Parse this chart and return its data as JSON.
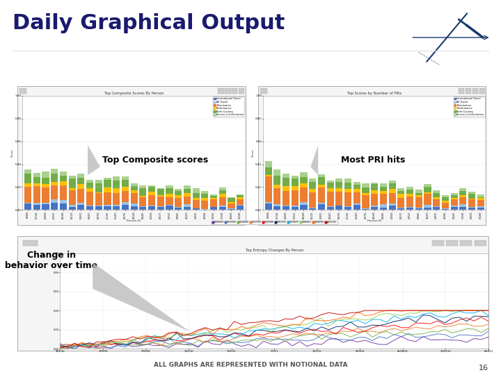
{
  "title": "Daily Graphical Output",
  "title_fontsize": 22,
  "title_color": "#1a1a6e",
  "title_fontweight": "bold",
  "bg_color": "#ffffff",
  "slide_number": "16",
  "bottom_text": "ALL GRAPHS ARE REPRESENTED WITH NOTIONAL DATA",
  "label_top_composite": "Top Composite scores",
  "label_most_pri": "Most PRI hits",
  "label_change_behavior": "Change in\nbehavior over time",
  "chart1_title": "Top Composite Scores By Person",
  "chart2_title": "Top Scores by Number of PRIs",
  "chart3_title": "Top Entropy Changes By Person",
  "chart1_xlabel": "Person ID",
  "chart2_xlabel": "Person ID",
  "bar_colors": [
    "#4472c4",
    "#9dc3e6",
    "#ed7d31",
    "#ffc000",
    "#70ad47",
    "#a9d18e"
  ],
  "legend_labels": [
    "International Travel",
    "All Travel",
    "Termination",
    "Performance",
    "Birth Country",
    "Access to Information"
  ],
  "n_bars": 25,
  "chart3_line_colors": [
    "#7030a0",
    "#4472c4",
    "#70ad47",
    "#ed7d31",
    "#ff0000",
    "#002060",
    "#00b0f0",
    "#92d050",
    "#ff6600",
    "#c00000"
  ],
  "chart3_xlabels": [
    "9/01/10",
    "3/05/10",
    "7/05/10",
    "10/1/10",
    "1/01/11",
    "7/1/11",
    "10/1/11",
    "02/3/12",
    "06/18/12",
    "10/11/12",
    "01/01/1"
  ],
  "panel_bg": "#f0f0f0",
  "panel_border": "#aaaaaa",
  "arrow_color": "#bbbbbb",
  "label_box_color": "#d8d8d8",
  "toolbar_bg": "#e8e8e8",
  "chart_panel_bg": "#f5f5f5"
}
